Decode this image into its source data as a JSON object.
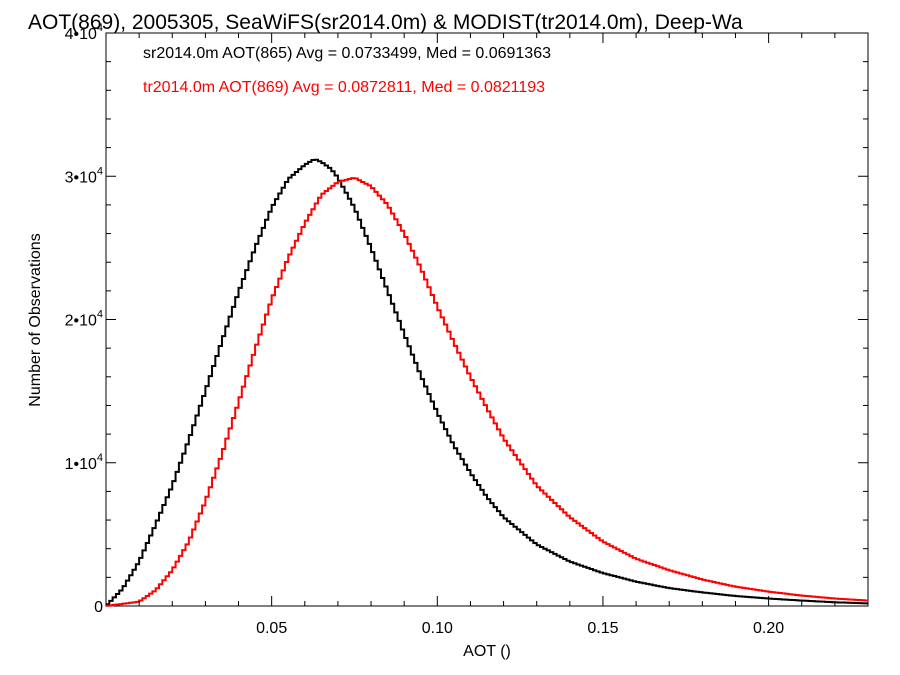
{
  "chart_data": {
    "type": "histogram",
    "title": "AOT(869), 2005305, SeaWiFS(sr2014.0m) & MODIST(tr2014.0m), Deep-Wa",
    "xlabel": "AOT ()",
    "ylabel": "Number of Observations",
    "xlim": [
      0.0,
      0.23
    ],
    "ylim": [
      0,
      40000
    ],
    "x_ticks": [
      {
        "value": 0.05,
        "label": "0.05"
      },
      {
        "value": 0.1,
        "label": "0.10"
      },
      {
        "value": 0.15,
        "label": "0.15"
      },
      {
        "value": 0.2,
        "label": "0.20"
      }
    ],
    "y_ticks": [
      {
        "value": 0,
        "mant": "0",
        "exp": ""
      },
      {
        "value": 10000,
        "mant": "1•10",
        "exp": "4"
      },
      {
        "value": 20000,
        "mant": "2•10",
        "exp": "4"
      },
      {
        "value": 30000,
        "mant": "3•10",
        "exp": "4"
      },
      {
        "value": 40000,
        "mant": "4•10",
        "exp": "4"
      }
    ],
    "series": [
      {
        "color": "#000000",
        "x": [
          0.0,
          0.005,
          0.01,
          0.015,
          0.02,
          0.025,
          0.03,
          0.035,
          0.04,
          0.045,
          0.05,
          0.055,
          0.06,
          0.063,
          0.065,
          0.068,
          0.07,
          0.075,
          0.08,
          0.085,
          0.09,
          0.095,
          0.1,
          0.105,
          0.11,
          0.115,
          0.12,
          0.13,
          0.14,
          0.15,
          0.16,
          0.17,
          0.18,
          0.19,
          0.2,
          0.21,
          0.22,
          0.23
        ],
        "y": [
          0,
          1200,
          3100,
          5700,
          8400,
          11600,
          15000,
          18500,
          21900,
          25000,
          27800,
          29800,
          30800,
          31200,
          31000,
          30500,
          29900,
          27800,
          25000,
          22000,
          19000,
          16100,
          13500,
          11200,
          9300,
          7600,
          6200,
          4300,
          3100,
          2300,
          1700,
          1250,
          950,
          700,
          520,
          380,
          260,
          180
        ]
      },
      {
        "color": "#ff0000",
        "x": [
          0.0,
          0.01,
          0.015,
          0.02,
          0.025,
          0.03,
          0.035,
          0.04,
          0.045,
          0.05,
          0.055,
          0.06,
          0.065,
          0.07,
          0.075,
          0.08,
          0.085,
          0.09,
          0.095,
          0.1,
          0.105,
          0.11,
          0.115,
          0.12,
          0.13,
          0.14,
          0.15,
          0.16,
          0.17,
          0.18,
          0.19,
          0.2,
          0.21,
          0.22,
          0.23
        ],
        "y": [
          0,
          300,
          1100,
          2500,
          4500,
          7300,
          10600,
          14200,
          17900,
          21400,
          24300,
          26700,
          28700,
          29600,
          29900,
          29300,
          28000,
          26000,
          23600,
          20900,
          18400,
          16000,
          13800,
          11700,
          8400,
          6200,
          4500,
          3300,
          2500,
          1850,
          1350,
          1000,
          730,
          520,
          380
        ]
      }
    ],
    "annotations": [
      {
        "text": "sr2014.0m AOT(865) Avg = 0.0733499, Med = 0.0691363",
        "color": "#000000"
      },
      {
        "text": "tr2014.0m AOT(869) Avg = 0.0872811, Med = 0.0821193",
        "color": "#ff0000"
      }
    ]
  }
}
